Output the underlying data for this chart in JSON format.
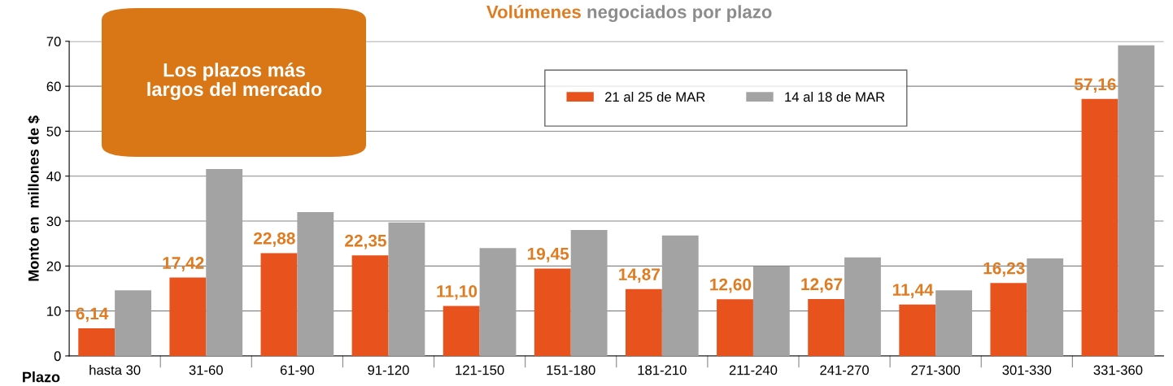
{
  "chart_data": {
    "type": "bar",
    "title": "Volúmenes negociados por plazo",
    "xlabel": "Plazo",
    "ylabel": "Monto en  millones de $",
    "categories": [
      "hasta 30",
      "31-60",
      "61-90",
      "91-120",
      "121-150",
      "151-180",
      "181-210",
      "211-240",
      "241-270",
      "271-300",
      "301-330",
      "331-360"
    ],
    "series": [
      {
        "name": "21 al 25 de MAR",
        "color": "#e8521c",
        "values": [
          6.14,
          17.42,
          22.88,
          22.35,
          11.1,
          19.45,
          14.87,
          12.6,
          12.67,
          11.44,
          16.23,
          57.16
        ],
        "value_labels": [
          "6,14",
          "17,42",
          "22,88",
          "22,35",
          "11,10",
          "19,45",
          "14,87",
          "12,60",
          "12,67",
          "11,44",
          "16,23",
          "57,16"
        ]
      },
      {
        "name": "14 al 18 de MAR",
        "color": "#a3a3a3",
        "values": [
          14.6,
          41.6,
          32.0,
          29.7,
          24.0,
          28.0,
          26.8,
          19.9,
          21.9,
          14.6,
          21.7,
          69.1
        ]
      }
    ],
    "ylim": [
      0,
      70
    ],
    "yticks": [
      0,
      10,
      20,
      30,
      40,
      50,
      60,
      70
    ],
    "grid": "y",
    "legend": "top right",
    "annotations": [
      "Los plazos más largos del mercado"
    ]
  }
}
